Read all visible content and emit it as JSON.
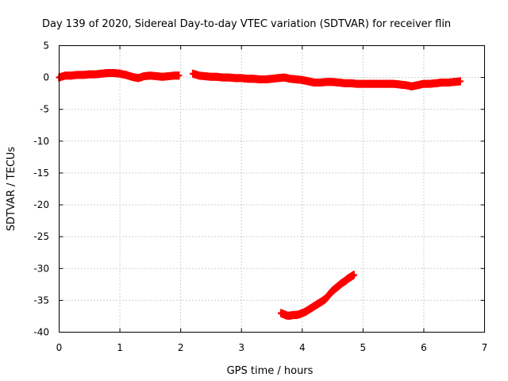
{
  "chart_data": {
    "type": "scatter",
    "title": "Day 139 of 2020, Sidereal Day-to-day VTEC variation (SDTVAR) for receiver flin",
    "xlabel": "GPS time / hours",
    "ylabel": "SDTVAR / TECUs",
    "xlim": [
      0,
      7
    ],
    "ylim": [
      -40,
      5
    ],
    "xticks": [
      "0",
      "1",
      "2",
      "3",
      "4",
      "5",
      "6",
      "7"
    ],
    "yticks": [
      "5",
      "0",
      "-5",
      "-10",
      "-15",
      "-20",
      "-25",
      "-30",
      "-35",
      "-40"
    ],
    "grid": true,
    "marker": "plus",
    "color": "#ff0000",
    "series": [
      {
        "x": [
          0.0,
          0.1,
          0.2,
          0.3,
          0.4,
          0.5,
          0.6,
          0.7,
          0.8,
          0.9,
          1.0,
          1.1,
          1.2,
          1.3,
          1.4,
          1.5,
          1.6,
          1.7,
          1.8,
          1.9,
          1.97
        ],
        "y": [
          0.0,
          0.3,
          0.3,
          0.4,
          0.4,
          0.5,
          0.5,
          0.6,
          0.7,
          0.7,
          0.6,
          0.4,
          0.1,
          -0.1,
          0.2,
          0.3,
          0.2,
          0.1,
          0.2,
          0.3,
          0.3
        ]
      },
      {
        "x": [
          2.2,
          2.3,
          2.4,
          2.5,
          2.6,
          2.7,
          2.8,
          2.9,
          3.0,
          3.1,
          3.2,
          3.3,
          3.4,
          3.5,
          3.6,
          3.7,
          3.8,
          3.9,
          4.0,
          4.1,
          4.2,
          4.3,
          4.4,
          4.5,
          4.6,
          4.7,
          4.8,
          4.9,
          5.0,
          5.1,
          5.2,
          5.3,
          5.4,
          5.5,
          5.6,
          5.7,
          5.8,
          5.9,
          6.0,
          6.1,
          6.2,
          6.3,
          6.4,
          6.5,
          6.6
        ],
        "y": [
          0.6,
          0.3,
          0.2,
          0.1,
          0.1,
          0.0,
          0.0,
          -0.1,
          -0.1,
          -0.2,
          -0.2,
          -0.3,
          -0.3,
          -0.2,
          -0.1,
          0.0,
          -0.2,
          -0.3,
          -0.4,
          -0.6,
          -0.8,
          -0.8,
          -0.7,
          -0.7,
          -0.8,
          -0.9,
          -0.9,
          -1.0,
          -1.0,
          -1.0,
          -1.0,
          -1.0,
          -1.0,
          -1.0,
          -1.1,
          -1.2,
          -1.4,
          -1.2,
          -1.0,
          -1.0,
          -0.9,
          -0.8,
          -0.8,
          -0.7,
          -0.6
        ]
      },
      {
        "x": [
          3.65,
          3.7,
          3.75,
          3.8,
          3.85,
          3.9,
          3.95,
          4.0,
          4.05,
          4.1,
          4.15,
          4.2,
          4.25,
          4.3,
          4.35,
          4.4,
          4.45,
          4.5,
          4.55,
          4.6,
          4.65,
          4.7,
          4.75,
          4.8,
          4.85
        ],
        "y": [
          -37.0,
          -37.2,
          -37.4,
          -37.4,
          -37.3,
          -37.3,
          -37.2,
          -37.0,
          -36.8,
          -36.5,
          -36.2,
          -35.9,
          -35.6,
          -35.3,
          -35.0,
          -34.6,
          -34.0,
          -33.5,
          -33.1,
          -32.7,
          -32.3,
          -32.0,
          -31.6,
          -31.3,
          -31.0
        ]
      }
    ]
  }
}
